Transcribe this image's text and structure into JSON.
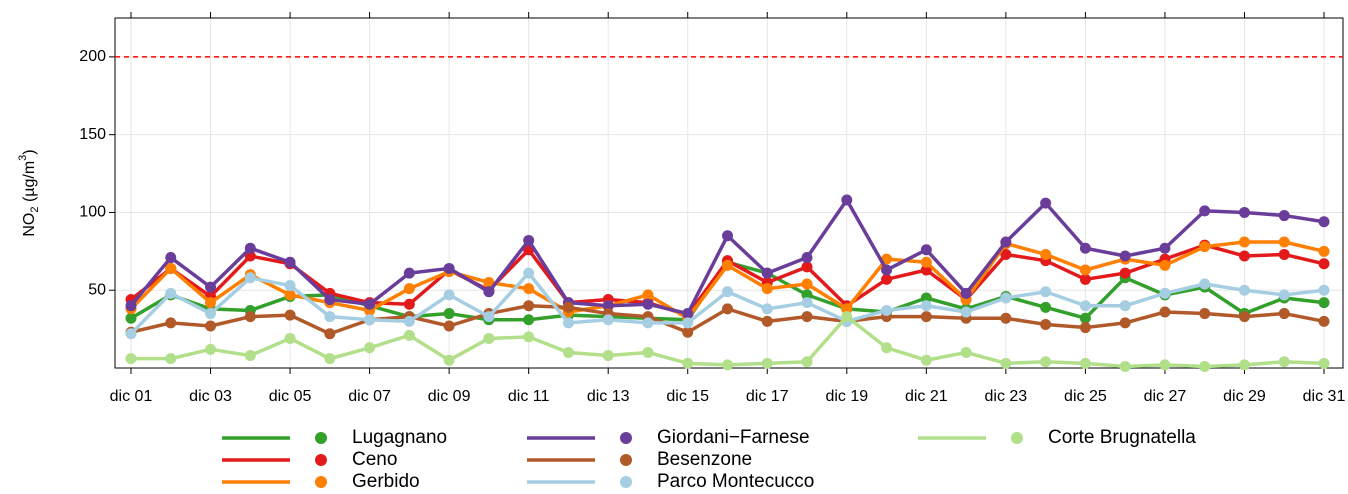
{
  "chart_data": {
    "type": "line",
    "ylabel": {
      "base": "NO",
      "sub": "2",
      "mid": " (µg/m",
      "sup": "3",
      "end": ")"
    },
    "categories": [
      "dic 01",
      null,
      "dic 03",
      null,
      "dic 05",
      null,
      "dic 07",
      null,
      "dic 09",
      null,
      "dic 11",
      null,
      "dic 13",
      null,
      "dic 15",
      null,
      "dic 17",
      null,
      "dic 19",
      null,
      "dic 21",
      null,
      "dic 23",
      null,
      "dic 25",
      null,
      "dic 27",
      null,
      "dic 29",
      null,
      "dic 31"
    ],
    "ylim": [
      0,
      225
    ],
    "yticks": [
      50,
      100,
      150,
      200
    ],
    "grid": true,
    "hline": {
      "value": 200,
      "color": "#ff0000"
    },
    "series": [
      {
        "name": "Lugagnano",
        "color": "#33a02c",
        "values": [
          32,
          47,
          38,
          37,
          46,
          47,
          40,
          33,
          35,
          31,
          31,
          34,
          33,
          32,
          31,
          68,
          61,
          47,
          38,
          36,
          45,
          38,
          46,
          39,
          32,
          58,
          47,
          52,
          35,
          45,
          42
        ]
      },
      {
        "name": "Ceno",
        "color": "#e31a1c",
        "values": [
          44,
          64,
          46,
          72,
          67,
          48,
          42,
          41,
          63,
          50,
          76,
          42,
          44,
          42,
          34,
          69,
          55,
          65,
          40,
          57,
          63,
          44,
          73,
          69,
          57,
          61,
          70,
          79,
          72,
          73,
          67
        ]
      },
      {
        "name": "Gerbido",
        "color": "#ff7f00",
        "values": [
          38,
          64,
          42,
          60,
          47,
          42,
          37,
          51,
          62,
          55,
          51,
          36,
          40,
          47,
          32,
          66,
          51,
          54,
          38,
          70,
          68,
          44,
          80,
          73,
          63,
          70,
          66,
          78,
          81,
          81,
          75
        ]
      },
      {
        "name": "Giordani−Farnese",
        "color": "#6a3d9a",
        "values": [
          40,
          71,
          52,
          77,
          68,
          44,
          41,
          61,
          64,
          49,
          82,
          42,
          40,
          41,
          35,
          85,
          61,
          71,
          108,
          63,
          76,
          48,
          81,
          106,
          77,
          72,
          77,
          101,
          100,
          98,
          94
        ]
      },
      {
        "name": "Besenzone",
        "color": "#b15928",
        "values": [
          23,
          29,
          27,
          33,
          34,
          22,
          31,
          33,
          27,
          35,
          40,
          39,
          35,
          33,
          23,
          38,
          30,
          33,
          30,
          33,
          33,
          32,
          32,
          28,
          26,
          29,
          36,
          35,
          33,
          35,
          30
        ]
      },
      {
        "name": "Parco Montecucco",
        "color": "#a6cee3",
        "values": [
          22,
          48,
          35,
          58,
          53,
          33,
          31,
          30,
          47,
          33,
          61,
          29,
          31,
          29,
          29,
          49,
          38,
          42,
          30,
          37,
          40,
          36,
          45,
          49,
          40,
          40,
          48,
          54,
          50,
          47,
          50
        ]
      },
      {
        "name": "Corte Brugnatella",
        "color": "#b2df8a",
        "values": [
          6,
          6,
          12,
          8,
          19,
          6,
          13,
          21,
          5,
          19,
          20,
          10,
          8,
          10,
          3,
          2,
          3,
          4,
          33,
          13,
          5,
          10,
          3,
          4,
          3,
          1,
          2,
          1,
          2,
          4,
          3
        ]
      }
    ]
  }
}
